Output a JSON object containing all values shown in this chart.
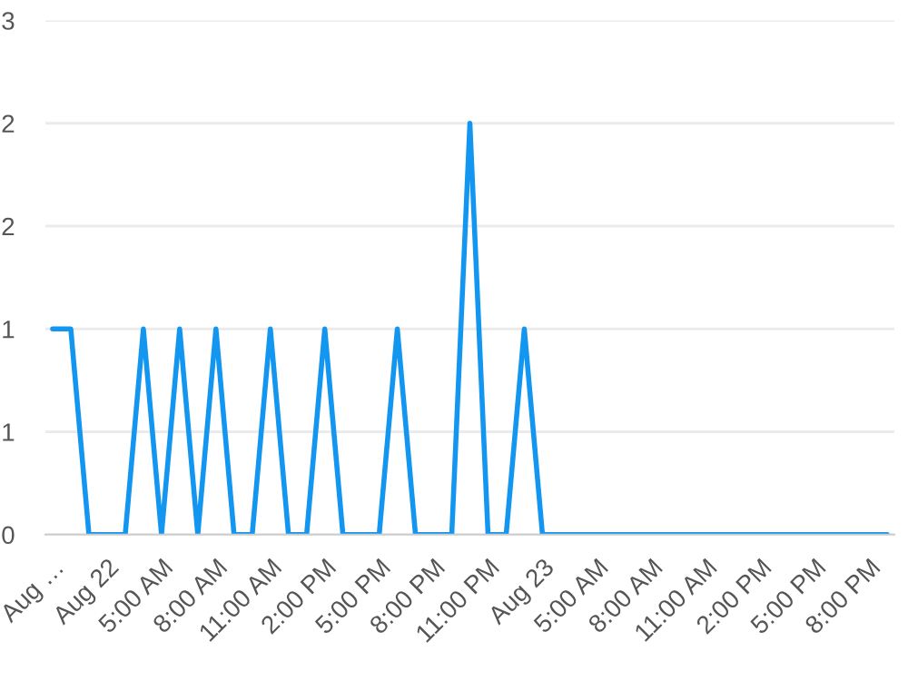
{
  "chart_data": {
    "type": "line",
    "categories": [
      "Aug …",
      null,
      null,
      "Aug 22",
      null,
      null,
      "5:00 AM",
      null,
      null,
      "8:00 AM",
      null,
      null,
      "11:00 AM",
      null,
      null,
      "2:00 PM",
      null,
      null,
      "5:00 PM",
      null,
      null,
      "8:00 PM",
      null,
      null,
      "11:00 PM",
      null,
      null,
      "Aug 23",
      null,
      null,
      "5:00 AM",
      null,
      null,
      "8:00 AM",
      null,
      null,
      "11:00 AM",
      null,
      null,
      "2:00 PM",
      null,
      null,
      "5:00 PM",
      null,
      null,
      "8:00 PM",
      null
    ],
    "series": [
      {
        "color": "#1396f0",
        "values": [
          1,
          1,
          0,
          0,
          0,
          1,
          0,
          1,
          0,
          1,
          0,
          0,
          1,
          0,
          0,
          1,
          0,
          0,
          0,
          1,
          0,
          0,
          0,
          2,
          0,
          0,
          1,
          0,
          0,
          0,
          0,
          0,
          0,
          0,
          0,
          0,
          0,
          0,
          0,
          0,
          0,
          0,
          0,
          0,
          0,
          0,
          0
        ]
      }
    ],
    "ylim": [
      0,
      2.5
    ],
    "yticks": [
      0,
      {
        "value": 0.5,
        "label": "1"
      },
      1,
      {
        "value": 1.5,
        "label": "2"
      },
      2,
      {
        "value": 2.5,
        "label": "3"
      }
    ],
    "grid": "y",
    "marker": "none",
    "line_style": "solid",
    "legend": false
  }
}
